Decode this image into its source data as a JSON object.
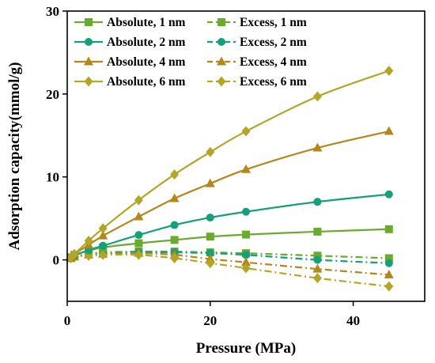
{
  "chart_data": {
    "type": "line",
    "xlabel": "Pressure (MPa)",
    "ylabel": "Adsorption capacity(mmol/g)",
    "xlim": [
      0,
      50
    ],
    "ylim": [
      -5,
      30
    ],
    "xticks": [
      0,
      20,
      40
    ],
    "yticks": [
      0,
      10,
      20,
      30
    ],
    "legend_position": "top-left",
    "x": [
      0.5,
      1,
      3,
      5,
      10,
      15,
      20,
      25,
      35,
      45
    ],
    "series": [
      {
        "name": "Absolute, 1 nm",
        "pore": "1 nm",
        "kind": "absolute",
        "marker": "square",
        "color": "#6aaa2c",
        "values": [
          0.3,
          0.6,
          1.1,
          1.5,
          2.0,
          2.4,
          2.8,
          3.05,
          3.4,
          3.7
        ]
      },
      {
        "name": "Absolute, 2 nm",
        "pore": "2 nm",
        "kind": "absolute",
        "marker": "circle",
        "color": "#13a07a",
        "values": [
          0.3,
          0.5,
          1.2,
          1.7,
          3.0,
          4.2,
          5.1,
          5.8,
          7.0,
          7.9
        ]
      },
      {
        "name": "Absolute, 4 nm",
        "pore": "4 nm",
        "kind": "absolute",
        "marker": "triangle",
        "color": "#b5861c",
        "values": [
          0.3,
          0.7,
          1.8,
          2.9,
          5.2,
          7.4,
          9.2,
          10.9,
          13.5,
          15.5
        ]
      },
      {
        "name": "Absolute, 6 nm",
        "pore": "6 nm",
        "kind": "absolute",
        "marker": "diamond",
        "color": "#b3a626",
        "values": [
          0.3,
          0.7,
          2.3,
          3.8,
          7.2,
          10.3,
          13.0,
          15.5,
          19.7,
          22.8
        ]
      },
      {
        "name": "Excess, 1 nm",
        "pore": "1 nm",
        "kind": "excess",
        "marker": "square",
        "color": "#6aaa2c",
        "values": [
          0.2,
          0.4,
          0.7,
          0.9,
          1.0,
          1.0,
          0.9,
          0.8,
          0.5,
          0.2
        ]
      },
      {
        "name": "Excess, 2 nm",
        "pore": "2 nm",
        "kind": "excess",
        "marker": "circle",
        "color": "#13a07a",
        "values": [
          0.2,
          0.4,
          0.7,
          0.8,
          0.9,
          0.9,
          0.8,
          0.6,
          0.0,
          -0.4
        ]
      },
      {
        "name": "Excess, 4 nm",
        "pore": "4 nm",
        "kind": "excess",
        "marker": "triangle",
        "color": "#b5861c",
        "values": [
          0.2,
          0.4,
          0.6,
          0.7,
          0.8,
          0.6,
          0.1,
          -0.3,
          -1.1,
          -1.8
        ]
      },
      {
        "name": "Excess, 6 nm",
        "pore": "6 nm",
        "kind": "excess",
        "marker": "diamond",
        "color": "#b3a626",
        "values": [
          0.2,
          0.4,
          0.5,
          0.6,
          0.6,
          0.2,
          -0.4,
          -1.0,
          -2.2,
          -3.2
        ]
      }
    ]
  }
}
